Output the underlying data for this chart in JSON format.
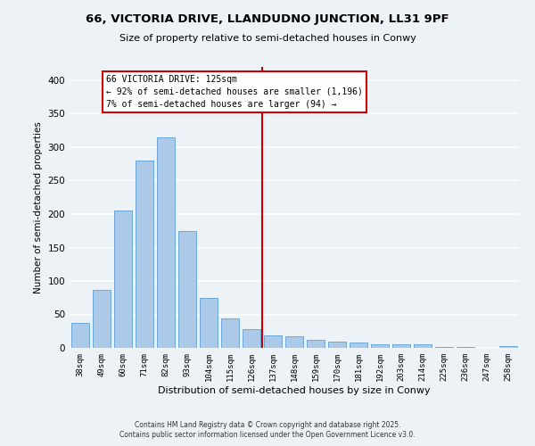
{
  "title1": "66, VICTORIA DRIVE, LLANDUDNO JUNCTION, LL31 9PF",
  "title2": "Size of property relative to semi-detached houses in Conwy",
  "xlabel": "Distribution of semi-detached houses by size in Conwy",
  "ylabel": "Number of semi-detached properties",
  "categories": [
    "38sqm",
    "49sqm",
    "60sqm",
    "71sqm",
    "82sqm",
    "93sqm",
    "104sqm",
    "115sqm",
    "126sqm",
    "137sqm",
    "148sqm",
    "159sqm",
    "170sqm",
    "181sqm",
    "192sqm",
    "203sqm",
    "214sqm",
    "225sqm",
    "236sqm",
    "247sqm",
    "258sqm"
  ],
  "values": [
    38,
    87,
    205,
    280,
    315,
    175,
    75,
    44,
    28,
    19,
    18,
    12,
    9,
    8,
    5,
    5,
    5,
    2,
    1,
    0,
    3
  ],
  "bar_color": "#adc9e8",
  "bar_edge_color": "#5a9fd4",
  "vline_color": "#cc0000",
  "annotation_title": "66 VICTORIA DRIVE: 125sqm",
  "annotation_line1": "← 92% of semi-detached houses are smaller (1,196)",
  "annotation_line2": "7% of semi-detached houses are larger (94) →",
  "annotation_box_edge_color": "#cc0000",
  "footer1": "Contains HM Land Registry data © Crown copyright and database right 2025.",
  "footer2": "Contains public sector information licensed under the Open Government Licence v3.0.",
  "ylim": [
    0,
    420
  ],
  "yticks": [
    0,
    50,
    100,
    150,
    200,
    250,
    300,
    350,
    400
  ],
  "bg_color": "#edf2f7",
  "grid_color": "#ffffff"
}
